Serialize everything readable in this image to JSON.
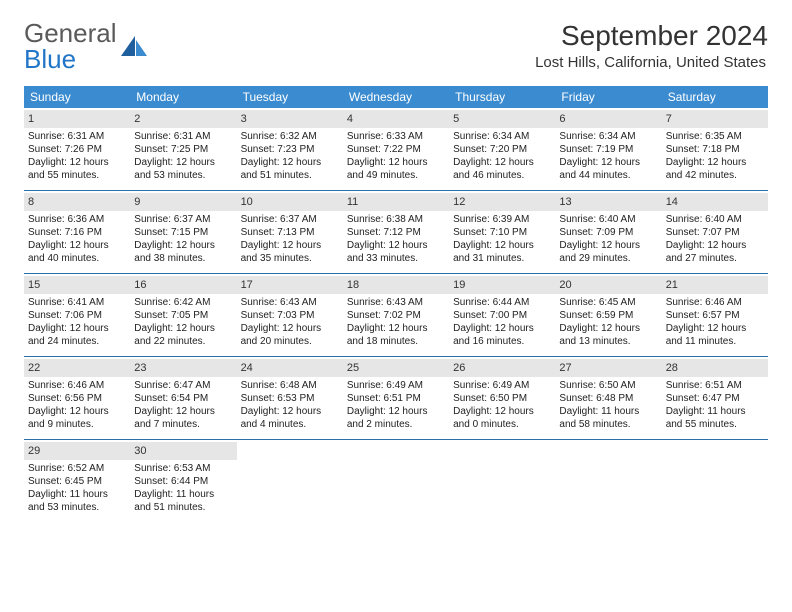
{
  "logo": {
    "text1": "General",
    "text2": "Blue"
  },
  "title": "September 2024",
  "location": "Lost Hills, California, United States",
  "days_of_week": [
    "Sunday",
    "Monday",
    "Tuesday",
    "Wednesday",
    "Thursday",
    "Friday",
    "Saturday"
  ],
  "colors": {
    "header_blue": "#3b8bd0",
    "row_border": "#2b6fa8",
    "day_bg": "#e6e6e6",
    "logo_blue": "#2176c7"
  },
  "weeks": [
    [
      {
        "n": "1",
        "sunrise": "Sunrise: 6:31 AM",
        "sunset": "Sunset: 7:26 PM",
        "daylight": "Daylight: 12 hours and 55 minutes."
      },
      {
        "n": "2",
        "sunrise": "Sunrise: 6:31 AM",
        "sunset": "Sunset: 7:25 PM",
        "daylight": "Daylight: 12 hours and 53 minutes."
      },
      {
        "n": "3",
        "sunrise": "Sunrise: 6:32 AM",
        "sunset": "Sunset: 7:23 PM",
        "daylight": "Daylight: 12 hours and 51 minutes."
      },
      {
        "n": "4",
        "sunrise": "Sunrise: 6:33 AM",
        "sunset": "Sunset: 7:22 PM",
        "daylight": "Daylight: 12 hours and 49 minutes."
      },
      {
        "n": "5",
        "sunrise": "Sunrise: 6:34 AM",
        "sunset": "Sunset: 7:20 PM",
        "daylight": "Daylight: 12 hours and 46 minutes."
      },
      {
        "n": "6",
        "sunrise": "Sunrise: 6:34 AM",
        "sunset": "Sunset: 7:19 PM",
        "daylight": "Daylight: 12 hours and 44 minutes."
      },
      {
        "n": "7",
        "sunrise": "Sunrise: 6:35 AM",
        "sunset": "Sunset: 7:18 PM",
        "daylight": "Daylight: 12 hours and 42 minutes."
      }
    ],
    [
      {
        "n": "8",
        "sunrise": "Sunrise: 6:36 AM",
        "sunset": "Sunset: 7:16 PM",
        "daylight": "Daylight: 12 hours and 40 minutes."
      },
      {
        "n": "9",
        "sunrise": "Sunrise: 6:37 AM",
        "sunset": "Sunset: 7:15 PM",
        "daylight": "Daylight: 12 hours and 38 minutes."
      },
      {
        "n": "10",
        "sunrise": "Sunrise: 6:37 AM",
        "sunset": "Sunset: 7:13 PM",
        "daylight": "Daylight: 12 hours and 35 minutes."
      },
      {
        "n": "11",
        "sunrise": "Sunrise: 6:38 AM",
        "sunset": "Sunset: 7:12 PM",
        "daylight": "Daylight: 12 hours and 33 minutes."
      },
      {
        "n": "12",
        "sunrise": "Sunrise: 6:39 AM",
        "sunset": "Sunset: 7:10 PM",
        "daylight": "Daylight: 12 hours and 31 minutes."
      },
      {
        "n": "13",
        "sunrise": "Sunrise: 6:40 AM",
        "sunset": "Sunset: 7:09 PM",
        "daylight": "Daylight: 12 hours and 29 minutes."
      },
      {
        "n": "14",
        "sunrise": "Sunrise: 6:40 AM",
        "sunset": "Sunset: 7:07 PM",
        "daylight": "Daylight: 12 hours and 27 minutes."
      }
    ],
    [
      {
        "n": "15",
        "sunrise": "Sunrise: 6:41 AM",
        "sunset": "Sunset: 7:06 PM",
        "daylight": "Daylight: 12 hours and 24 minutes."
      },
      {
        "n": "16",
        "sunrise": "Sunrise: 6:42 AM",
        "sunset": "Sunset: 7:05 PM",
        "daylight": "Daylight: 12 hours and 22 minutes."
      },
      {
        "n": "17",
        "sunrise": "Sunrise: 6:43 AM",
        "sunset": "Sunset: 7:03 PM",
        "daylight": "Daylight: 12 hours and 20 minutes."
      },
      {
        "n": "18",
        "sunrise": "Sunrise: 6:43 AM",
        "sunset": "Sunset: 7:02 PM",
        "daylight": "Daylight: 12 hours and 18 minutes."
      },
      {
        "n": "19",
        "sunrise": "Sunrise: 6:44 AM",
        "sunset": "Sunset: 7:00 PM",
        "daylight": "Daylight: 12 hours and 16 minutes."
      },
      {
        "n": "20",
        "sunrise": "Sunrise: 6:45 AM",
        "sunset": "Sunset: 6:59 PM",
        "daylight": "Daylight: 12 hours and 13 minutes."
      },
      {
        "n": "21",
        "sunrise": "Sunrise: 6:46 AM",
        "sunset": "Sunset: 6:57 PM",
        "daylight": "Daylight: 12 hours and 11 minutes."
      }
    ],
    [
      {
        "n": "22",
        "sunrise": "Sunrise: 6:46 AM",
        "sunset": "Sunset: 6:56 PM",
        "daylight": "Daylight: 12 hours and 9 minutes."
      },
      {
        "n": "23",
        "sunrise": "Sunrise: 6:47 AM",
        "sunset": "Sunset: 6:54 PM",
        "daylight": "Daylight: 12 hours and 7 minutes."
      },
      {
        "n": "24",
        "sunrise": "Sunrise: 6:48 AM",
        "sunset": "Sunset: 6:53 PM",
        "daylight": "Daylight: 12 hours and 4 minutes."
      },
      {
        "n": "25",
        "sunrise": "Sunrise: 6:49 AM",
        "sunset": "Sunset: 6:51 PM",
        "daylight": "Daylight: 12 hours and 2 minutes."
      },
      {
        "n": "26",
        "sunrise": "Sunrise: 6:49 AM",
        "sunset": "Sunset: 6:50 PM",
        "daylight": "Daylight: 12 hours and 0 minutes."
      },
      {
        "n": "27",
        "sunrise": "Sunrise: 6:50 AM",
        "sunset": "Sunset: 6:48 PM",
        "daylight": "Daylight: 11 hours and 58 minutes."
      },
      {
        "n": "28",
        "sunrise": "Sunrise: 6:51 AM",
        "sunset": "Sunset: 6:47 PM",
        "daylight": "Daylight: 11 hours and 55 minutes."
      }
    ],
    [
      {
        "n": "29",
        "sunrise": "Sunrise: 6:52 AM",
        "sunset": "Sunset: 6:45 PM",
        "daylight": "Daylight: 11 hours and 53 minutes."
      },
      {
        "n": "30",
        "sunrise": "Sunrise: 6:53 AM",
        "sunset": "Sunset: 6:44 PM",
        "daylight": "Daylight: 11 hours and 51 minutes."
      },
      null,
      null,
      null,
      null,
      null
    ]
  ]
}
